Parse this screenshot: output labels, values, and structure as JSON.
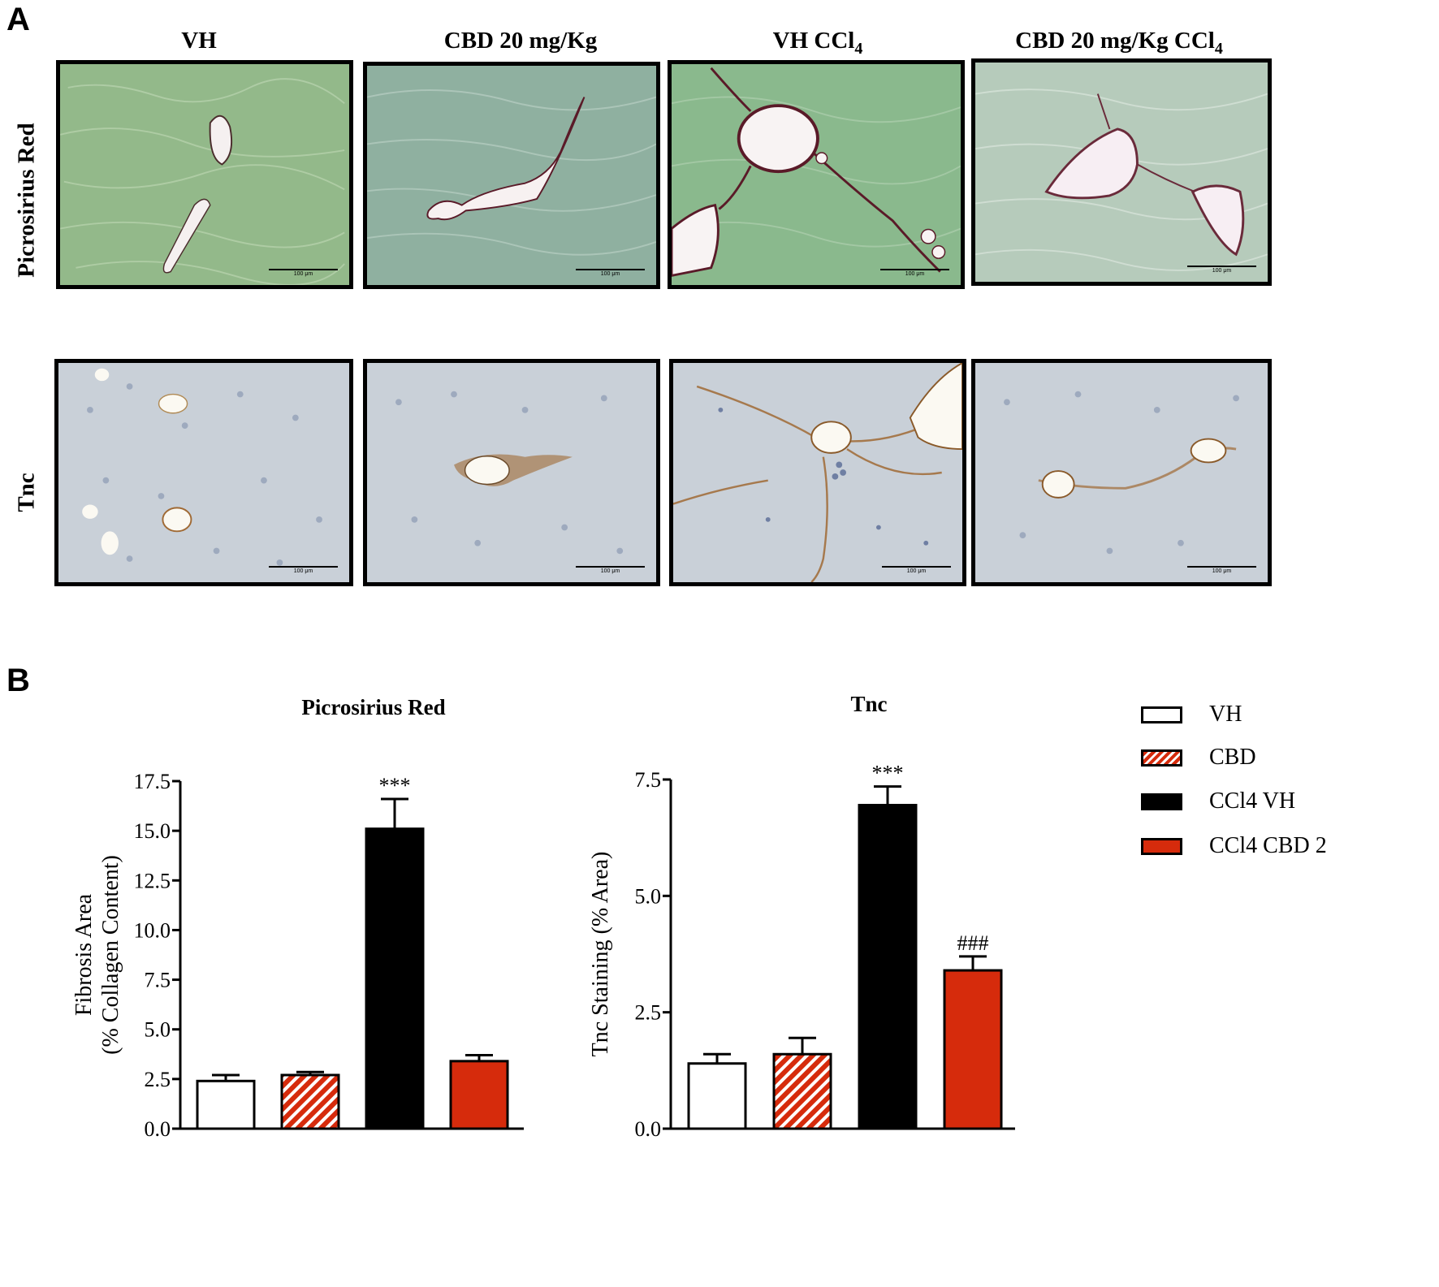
{
  "panels": {
    "a": "A",
    "b": "B"
  },
  "columns": [
    "VH",
    "CBD 20 mg/Kg",
    "VH CCl",
    "CBD 20 mg/Kg CCl"
  ],
  "column_subscripts": [
    "",
    "",
    "4",
    "4"
  ],
  "rows": [
    "Picrosirius Red",
    "Tnc"
  ],
  "scale_label": "100 μm",
  "colors": {
    "picro_vh_bg": "#93b98a",
    "picro_cbd_bg": "#8fb0a0",
    "picro_ccl4_bg": "#8ab98d",
    "picro_cbdccl4_bg": "#b6cbbb",
    "tnc_bg": "#c9d0d8",
    "collagen": "#5a1a28",
    "tnc_stain": "#a06a35",
    "bar_red": "#d62b0c",
    "bar_black": "#000000",
    "bar_white": "#ffffff"
  },
  "legend": [
    {
      "label": "VH",
      "icon": "white-swatch"
    },
    {
      "label": "CBD",
      "icon": "hatched-red-swatch"
    },
    {
      "label": "CCl4 VH",
      "icon": "black-swatch"
    },
    {
      "label": "CCl4 CBD 2",
      "icon": "red-swatch"
    }
  ],
  "chart_data": [
    {
      "type": "bar",
      "title": "Picrosirius Red",
      "ylabel": "Fibrosis Area",
      "ylabel2": "(% Collagen Content)",
      "categories": [
        "VH",
        "CBD",
        "CCl4 VH",
        "CCl4 CBD 2"
      ],
      "values": [
        2.4,
        2.7,
        15.1,
        3.4
      ],
      "errors": [
        0.3,
        0.15,
        1.5,
        0.3
      ],
      "annotations": [
        "",
        "",
        "***",
        ""
      ],
      "ylim": [
        0,
        17.5
      ],
      "yticks": [
        "0.0",
        "2.5",
        "5.0",
        "7.5",
        "10.0",
        "12.5",
        "15.0",
        "17.5"
      ]
    },
    {
      "type": "bar",
      "title": "Tnc",
      "ylabel": "Tnc Staining (% Area)",
      "categories": [
        "VH",
        "CBD",
        "CCl4 VH",
        "CCl4 CBD 2"
      ],
      "values": [
        1.4,
        1.6,
        6.95,
        3.4
      ],
      "errors": [
        0.2,
        0.35,
        0.4,
        0.3
      ],
      "annotations": [
        "",
        "",
        "***",
        "###"
      ],
      "ylim": [
        0,
        7.5
      ],
      "yticks": [
        "0.0",
        "2.5",
        "5.0",
        "7.5"
      ]
    }
  ]
}
